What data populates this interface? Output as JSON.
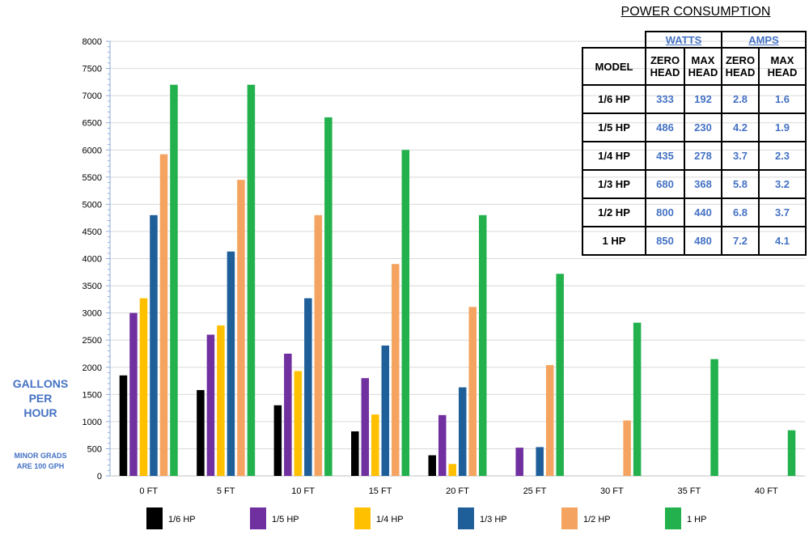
{
  "chart_data": {
    "type": "bar",
    "categories": [
      "0 FT",
      "5 FT",
      "10 FT",
      "15 FT",
      "20 FT",
      "25 FT",
      "30 FT",
      "35 FT",
      "40 FT"
    ],
    "series": [
      {
        "name": "1/6 HP",
        "color": "#000000",
        "values": [
          1850,
          1580,
          1300,
          820,
          380,
          null,
          null,
          null,
          null
        ]
      },
      {
        "name": "1/5 HP",
        "color": "#7030a0",
        "values": [
          3000,
          2600,
          2250,
          1800,
          1120,
          520,
          null,
          null,
          null
        ]
      },
      {
        "name": "1/4 HP",
        "color": "#ffc000",
        "values": [
          3270,
          2770,
          1930,
          1130,
          220,
          null,
          null,
          null,
          null
        ]
      },
      {
        "name": "1/3 HP",
        "color": "#1f5f99",
        "values": [
          4800,
          4130,
          3270,
          2400,
          1630,
          530,
          null,
          null,
          null
        ]
      },
      {
        "name": "1/2 HP",
        "color": "#f4a460",
        "values": [
          5920,
          5450,
          4800,
          3900,
          3110,
          2040,
          1020,
          null,
          null
        ]
      },
      {
        "name": "1 HP",
        "color": "#22b14c",
        "values": [
          7200,
          7200,
          6600,
          6000,
          4800,
          3720,
          2820,
          2150,
          840
        ]
      }
    ],
    "ylim": [
      0,
      8000
    ],
    "yticks": [
      0,
      500,
      1000,
      1500,
      2000,
      2500,
      3000,
      3500,
      4000,
      4500,
      5000,
      5500,
      6000,
      6500,
      7000,
      7500,
      8000
    ],
    "ylabel": [
      "GALLONS",
      "PER",
      "HOUR"
    ],
    "ylabel_note": [
      "MINOR GRADS",
      "ARE 100 GPH"
    ],
    "minor_grid_step": 100,
    "legend_placement": "bottom",
    "grid": true
  },
  "power_table": {
    "title": "POWER CONSUMPTION",
    "group_headers": [
      "WATTS",
      "AMPS"
    ],
    "column_headers": [
      "MODEL",
      "ZERO HEAD",
      "MAX HEAD",
      "ZERO HEAD",
      "MAX HEAD"
    ],
    "rows": [
      [
        "1/6 HP",
        "333",
        "192",
        "2.8",
        "1.6"
      ],
      [
        "1/5 HP",
        "486",
        "230",
        "4.2",
        "1.9"
      ],
      [
        "1/4 HP",
        "435",
        "278",
        "3.7",
        "2.3"
      ],
      [
        "1/3 HP",
        "680",
        "368",
        "5.8",
        "3.2"
      ],
      [
        "1/2 HP",
        "800",
        "440",
        "6.8",
        "3.7"
      ],
      [
        "1 HP",
        "850",
        "480",
        "7.2",
        "4.1"
      ]
    ]
  }
}
